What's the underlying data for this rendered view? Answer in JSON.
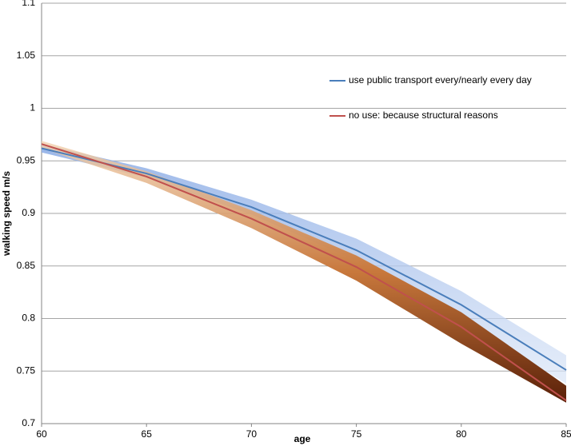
{
  "chart_data": {
    "type": "line",
    "x_label": "age",
    "y_label": "walking speed m/s",
    "x": [
      60,
      65,
      70,
      75,
      80,
      85
    ],
    "xlim": [
      60,
      85
    ],
    "xticks": [
      60,
      65,
      70,
      75,
      80,
      85
    ],
    "ylim": [
      0.7,
      1.1
    ],
    "yticks": [
      0.7,
      0.75,
      0.8,
      0.85,
      0.9,
      0.95,
      1,
      1.05,
      1.1
    ],
    "grid": true,
    "legend": "upper right",
    "series": [
      {
        "name": "use public transport every/nearly every day",
        "color": "#4a7ebb",
        "band_color": "#8eaee6",
        "values": [
          0.962,
          0.938,
          0.906,
          0.865,
          0.813,
          0.751
        ],
        "lower": [
          0.958,
          0.934,
          0.899,
          0.855,
          0.798,
          0.738
        ],
        "upper": [
          0.966,
          0.943,
          0.913,
          0.876,
          0.826,
          0.765
        ]
      },
      {
        "name": "no use: because structural reasons",
        "color": "#c0504d",
        "band_color": "#8b3a12",
        "values": [
          0.966,
          0.935,
          0.895,
          0.849,
          0.792,
          0.722
        ],
        "lower": [
          0.962,
          0.929,
          0.886,
          0.836,
          0.776,
          0.72
        ],
        "upper": [
          0.969,
          0.94,
          0.903,
          0.86,
          0.806,
          0.736
        ]
      }
    ]
  }
}
